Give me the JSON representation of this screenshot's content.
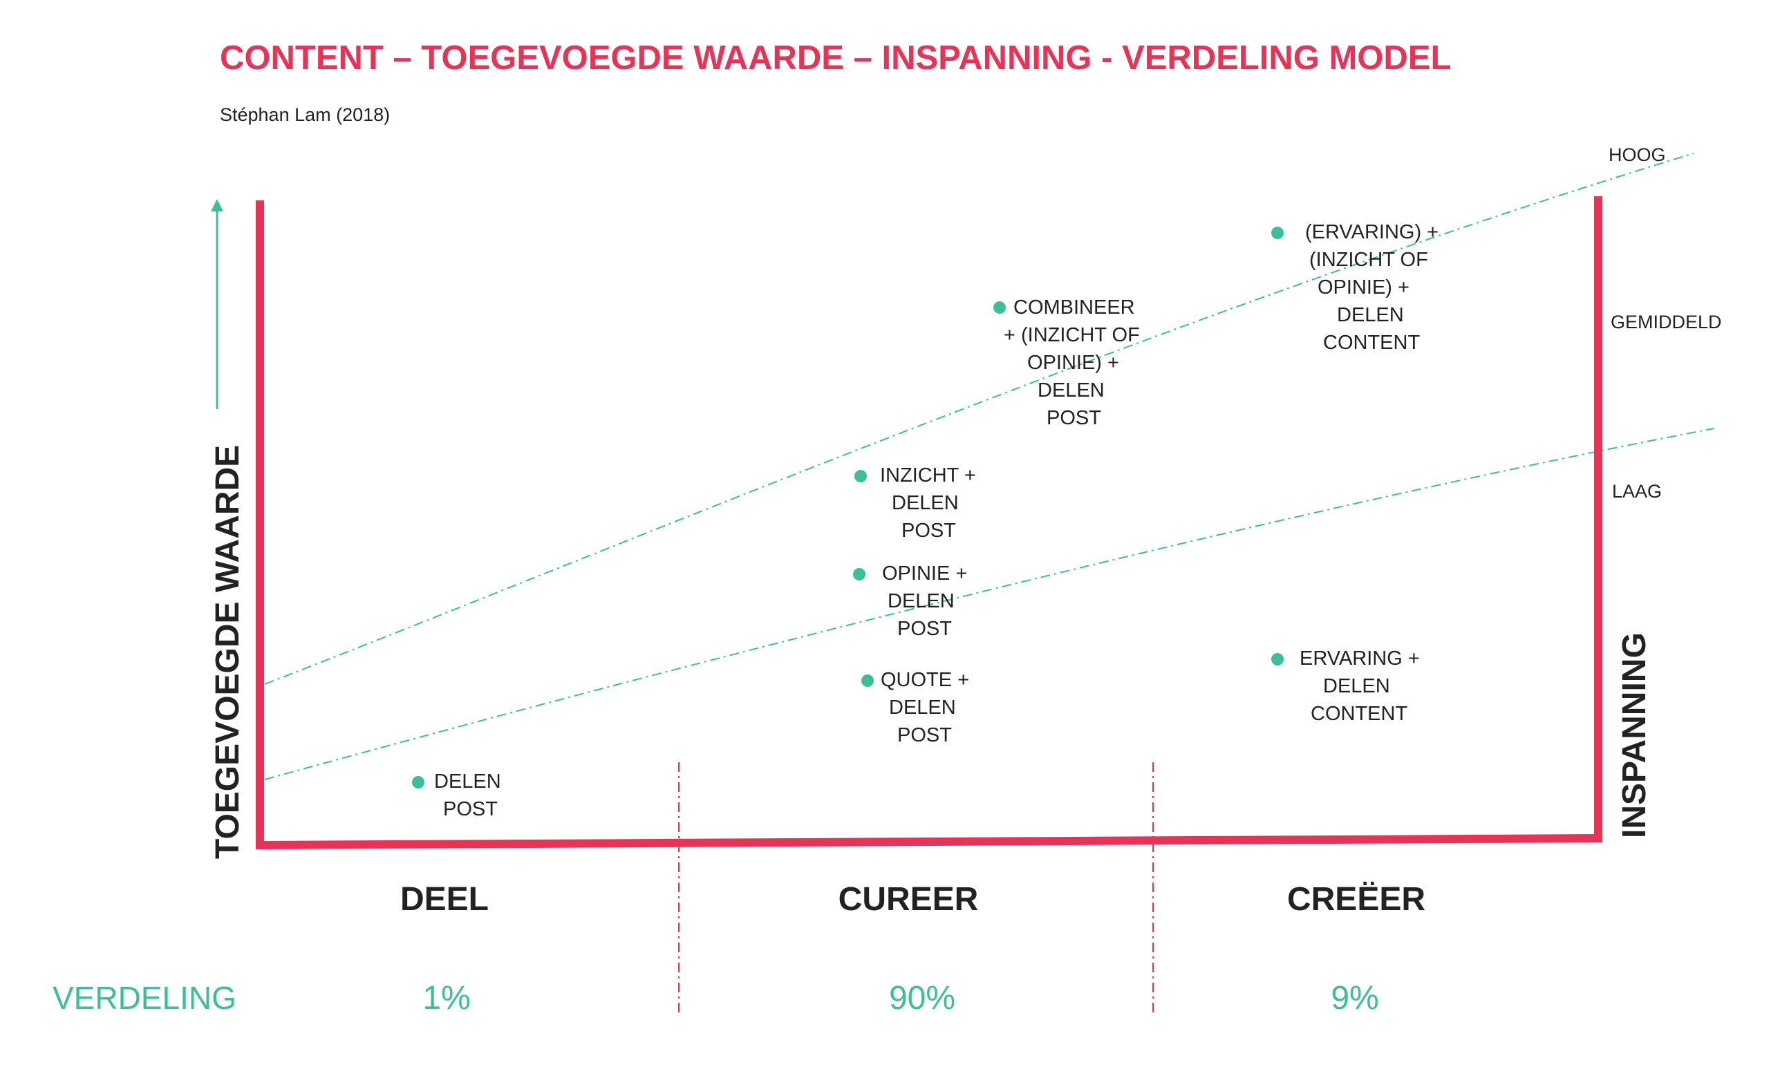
{
  "title": "CONTENT – TOEGEVOEGDE WAARDE – INSPANNING - VERDELING  MODEL",
  "subtitle": "Stéphan Lam (2018)",
  "axes": {
    "y_label": "TOEGEVOEGDE WAARDE",
    "y2_label": "INSPANNING"
  },
  "levels": {
    "high": "HOOG",
    "medium": "GEMIDDELD",
    "low": "LAAG"
  },
  "columns": {
    "deel": "DEEL",
    "cureer": "CUREER",
    "creeer": "CREËER"
  },
  "distribution": {
    "label": "VERDELING",
    "deel": "1%",
    "cureer": "90%",
    "creeer": "9%"
  },
  "items": {
    "delen_post": [
      "DELEN",
      "POST"
    ],
    "quote": [
      "QUOTE +",
      "DELEN",
      "POST"
    ],
    "opinie": [
      "OPINIE +",
      "DELEN",
      "POST"
    ],
    "inzicht": [
      "INZICHT +",
      "DELEN",
      "POST"
    ],
    "combineer": [
      "COMBINEER",
      "+ (INZICHT OF",
      "OPINIE) +",
      "DELEN",
      "POST"
    ],
    "ervaring_combo": [
      "(ERVARING) +",
      "(INZICHT OF",
      "OPINIE) +",
      "DELEN",
      "CONTENT"
    ],
    "ervaring": [
      "ERVARING +",
      "DELEN",
      "CONTENT"
    ]
  },
  "colors": {
    "accent": "#e83357",
    "teal": "#3bbf9a",
    "text": "#222222"
  }
}
